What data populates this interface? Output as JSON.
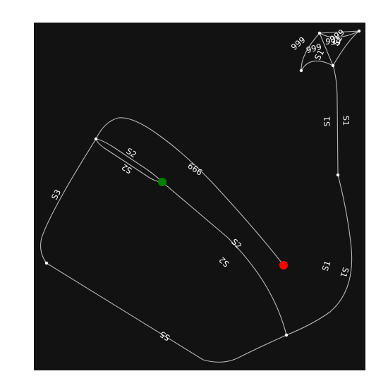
{
  "map": {
    "background": "#121212",
    "road_color": "#b9b9b9",
    "labels": {
      "s1_a": "S1",
      "s1_b": "S1",
      "s1_c": "S1",
      "s1_d": "S1",
      "s1_e": "S1",
      "s1_f": "S1",
      "s2_a": "S2",
      "s2_b": "S2",
      "s2_c": "S2",
      "s2_d": "S2",
      "s3": "S3",
      "s5": "S5",
      "r999_a": "999",
      "r999_b": "999",
      "r999_c": "999",
      "r999_d": "999",
      "r999_e": "999"
    },
    "markers": {
      "start_color": "#008000",
      "end_color": "#ff0000"
    }
  }
}
